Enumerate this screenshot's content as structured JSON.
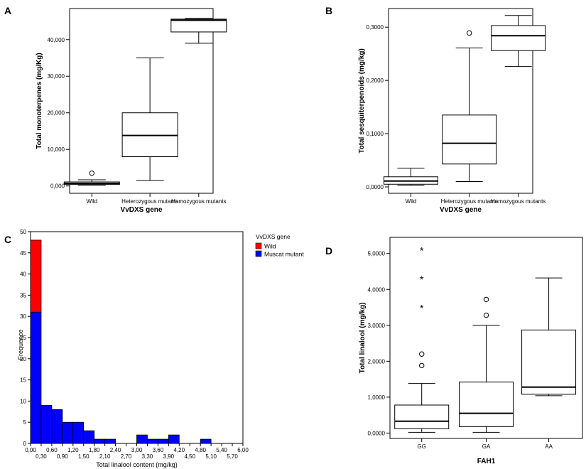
{
  "chart_data": [
    {
      "panel": "A",
      "type": "box",
      "ylabel": "Total monoterpenes (mg/Kg)",
      "xlabel": "VvDXS gene",
      "categories": [
        "Wild",
        "Heterozygous mutants",
        "Homozygous mutants"
      ],
      "ylim": [
        -2000,
        48500
      ],
      "yticks": [
        0,
        10000,
        20000,
        30000,
        40000
      ],
      "ytick_labels": [
        "0,000",
        "10,000",
        "20,000",
        "30,000",
        "40,000"
      ],
      "boxes": [
        {
          "min": 200,
          "q1": 400,
          "median": 700,
          "q3": 1100,
          "max": 1700,
          "outliers": [
            3500
          ],
          "extremes": []
        },
        {
          "min": 1500,
          "q1": 8000,
          "median": 13800,
          "q3": 20000,
          "max": 35000,
          "outliers": [],
          "extremes": []
        },
        {
          "min": 39000,
          "q1": 42100,
          "median": 45300,
          "q3": 45600,
          "max": 45800,
          "outliers": [],
          "extremes": []
        }
      ]
    },
    {
      "panel": "B",
      "type": "box",
      "ylabel": "Total sesquiterpenoids (mg/kg)",
      "xlabel": "VvDXS gene",
      "categories": [
        "Wild",
        "Heterozygous mutants",
        "Homozygous mutants"
      ],
      "ylim": [
        -0.012,
        0.335
      ],
      "yticks": [
        0,
        0.1,
        0.2,
        0.3
      ],
      "ytick_labels": [
        "0,0000",
        "0,1000",
        "0,2000",
        "0,3000"
      ],
      "boxes": [
        {
          "min": 0.003,
          "q1": 0.005,
          "median": 0.011,
          "q3": 0.019,
          "max": 0.035,
          "outliers": [],
          "extremes": []
        },
        {
          "min": 0.01,
          "q1": 0.043,
          "median": 0.082,
          "q3": 0.135,
          "max": 0.261,
          "outliers": [
            0.289
          ],
          "extremes": []
        },
        {
          "min": 0.226,
          "q1": 0.256,
          "median": 0.284,
          "q3": 0.303,
          "max": 0.322,
          "outliers": [],
          "extremes": []
        }
      ]
    },
    {
      "panel": "C",
      "type": "bar",
      "stacked": true,
      "ylabel": "Frequence",
      "xlabel": "Total linalool content (mg/kg)",
      "xlim": [
        0,
        6
      ],
      "ylim": [
        0,
        50
      ],
      "yticks": [
        0,
        5,
        10,
        15,
        20,
        25,
        30,
        35,
        40,
        45,
        50
      ],
      "ytick_labels": [
        "0",
        "5",
        "10",
        "15",
        "20",
        "25",
        "30",
        "35",
        "40",
        "45",
        "50"
      ],
      "xticks_top": [
        "0,00",
        "0,60",
        "1,20",
        "1,80",
        "2,40",
        "3,00",
        "3,60",
        "4,20",
        "4,80",
        "5,40",
        "6,00"
      ],
      "xticks_bottom": [
        "0,30",
        "0,90",
        "1,50",
        "2,10",
        "2,70",
        "3,30",
        "3,90",
        "4,50",
        "5,10",
        "5,70"
      ],
      "bin_width": 0.3,
      "bin_starts": [
        0,
        0.3,
        0.6,
        0.9,
        1.2,
        1.5,
        1.8,
        2.1,
        2.4,
        2.7,
        3.0,
        3.3,
        3.6,
        3.9,
        4.2,
        4.5,
        4.8,
        5.1,
        5.4,
        5.7
      ],
      "series": [
        {
          "name": "Muscat mutant",
          "color": "#0000ff",
          "values": [
            31,
            9,
            8,
            5,
            5,
            3,
            1,
            1,
            0,
            0,
            2,
            1,
            1,
            2,
            0,
            0,
            1,
            0,
            0,
            0
          ]
        },
        {
          "name": "Wild",
          "color": "#ff0000",
          "values": [
            17,
            0,
            0,
            0,
            0,
            0,
            0,
            0,
            0,
            0,
            0,
            0,
            0,
            0,
            0,
            0,
            0,
            0,
            0,
            0
          ]
        }
      ],
      "legend_title": "VvDXS gene",
      "legend": [
        {
          "name": "Wild",
          "color": "#ff0000"
        },
        {
          "name": "Muscat mutant",
          "color": "#0000ff"
        }
      ]
    },
    {
      "panel": "D",
      "type": "box",
      "ylabel": "Total linalool (mg/kg)",
      "xlabel": "FAH1",
      "categories": [
        "GG",
        "GA",
        "AA"
      ],
      "ylim": [
        -0.15,
        5.45
      ],
      "yticks": [
        0,
        1,
        2,
        3,
        4,
        5
      ],
      "ytick_labels": [
        "0,0000",
        "1,0000",
        "2,0000",
        "3,0000",
        "4,0000",
        "5,0000"
      ],
      "boxes": [
        {
          "min": 0.02,
          "q1": 0.12,
          "median": 0.33,
          "q3": 0.78,
          "max": 1.38,
          "outliers": [
            1.88,
            2.2
          ],
          "extremes": [
            3.5,
            4.3,
            5.1
          ]
        },
        {
          "min": 0.02,
          "q1": 0.18,
          "median": 0.55,
          "q3": 1.42,
          "max": 3.0,
          "outliers": [
            3.28,
            3.72
          ],
          "extremes": []
        },
        {
          "min": 1.04,
          "q1": 1.08,
          "median": 1.28,
          "q3": 2.87,
          "max": 4.32,
          "outliers": [],
          "extremes": []
        }
      ]
    }
  ]
}
